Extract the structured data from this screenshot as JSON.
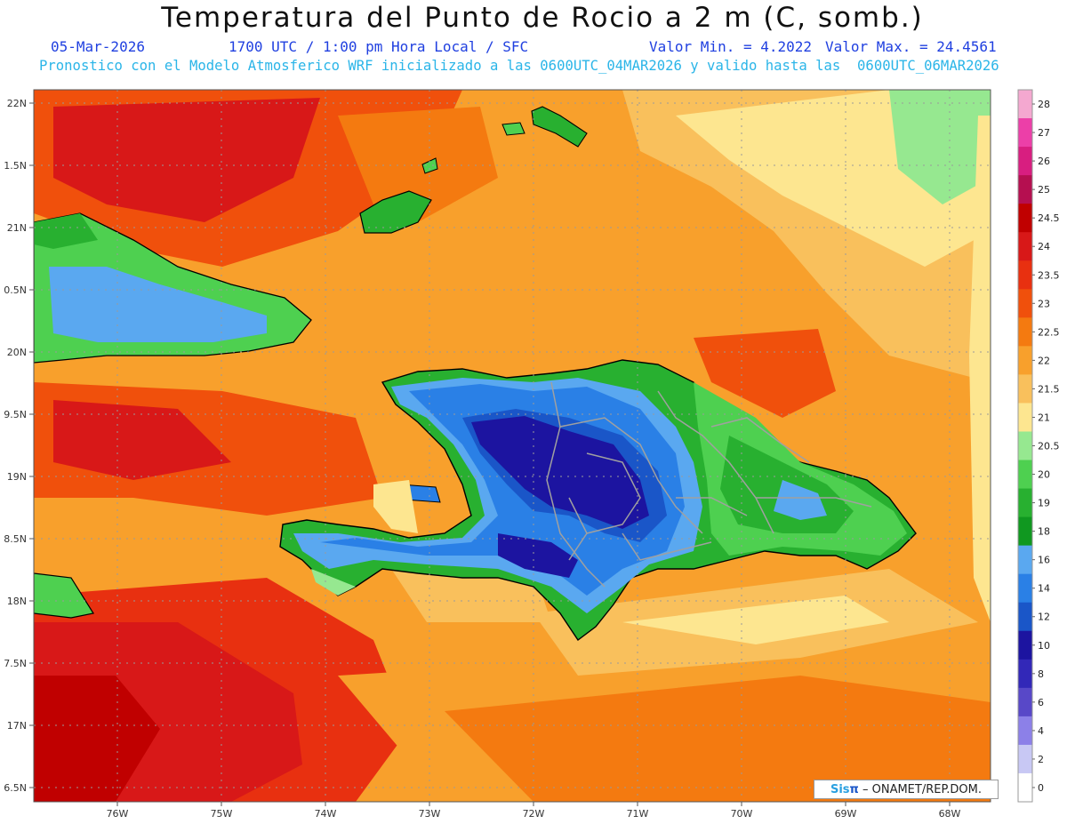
{
  "header": {
    "title": "Temperatura del Punto de Rocio a 2 m (C, somb.)",
    "date": "05-Mar-2026",
    "time": "1700 UTC / 1:00 pm Hora Local / SFC",
    "min": "Valor Min. = 4.2022",
    "max": "Valor Max. = 24.4561",
    "model_line": "Pronostico con el Modelo Atmosferico WRF inicializado a las 0600UTC_04MAR2026 y valido hasta las  0600UTC_06MAR2026"
  },
  "axes": {
    "lat_labels": [
      "22N",
      "1.5N",
      "21N",
      "0.5N",
      "20N",
      "9.5N",
      "19N",
      "8.5N",
      "18N",
      "7.5N",
      "17N",
      "6.5N"
    ],
    "lon_labels": [
      "76W",
      "75W",
      "74W",
      "73W",
      "72W",
      "71W",
      "70W",
      "69W",
      "68W"
    ]
  },
  "colorbar": {
    "labels": [
      "28",
      "27",
      "26",
      "25",
      "24.5",
      "24",
      "23.5",
      "23",
      "22.5",
      "22",
      "21.5",
      "21",
      "20.5",
      "20",
      "19",
      "18",
      "16",
      "14",
      "12",
      "10",
      "8",
      "6",
      "4",
      "2",
      "0"
    ],
    "colors": [
      "#f4a8d0",
      "#ec3fa8",
      "#d81e80",
      "#b50f50",
      "#c00000",
      "#d81818",
      "#e83010",
      "#f0500c",
      "#f47a10",
      "#f8a02c",
      "#f9c05c",
      "#fde690",
      "#96e890",
      "#4ed050",
      "#28b030",
      "#109820",
      "#5aa8f0",
      "#2a80e6",
      "#1a56c8",
      "#1c14a0",
      "#3228b8",
      "#5848c8",
      "#8c80e8",
      "#c8c8f4",
      "#ffffff"
    ]
  },
  "credit": {
    "sis": "Sis",
    "pi": "π",
    "rest": "– ONAMET/REP.DOM."
  }
}
